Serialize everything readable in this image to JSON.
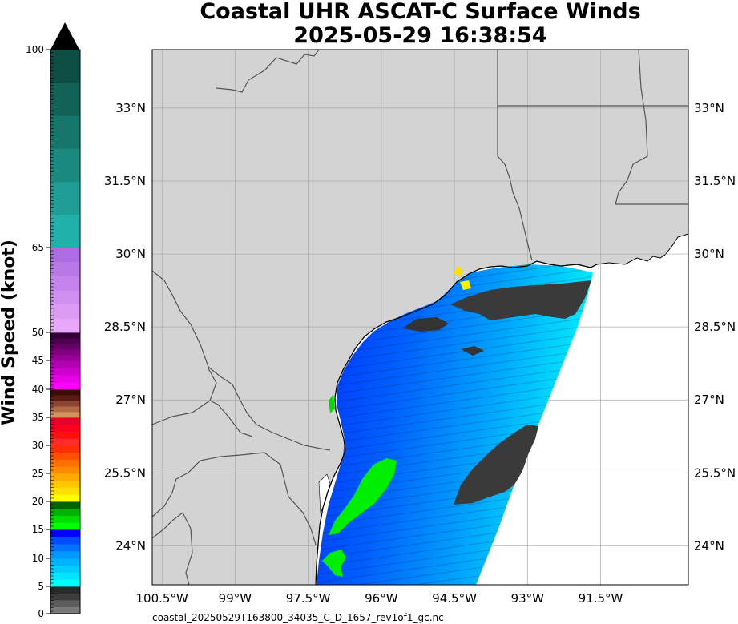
{
  "header": {
    "title_line1": "Coastal UHR ASCAT-C Surface Winds",
    "title_line2": "2025-05-29 16:38:54"
  },
  "colorbar": {
    "label": "Wind Speed (knot)",
    "ticks": [
      "0",
      "5",
      "10",
      "15",
      "20",
      "25",
      "30",
      "35",
      "40",
      "45",
      "50",
      "65",
      "100"
    ],
    "tick_values": [
      0,
      5,
      10,
      15,
      20,
      25,
      30,
      35,
      40,
      45,
      50,
      65,
      100
    ],
    "segments": [
      {
        "from": 0,
        "to": 5,
        "colors": [
          "#7a7a7a",
          "#5c5c5c",
          "#3c3c3c",
          "#2a2a2a"
        ]
      },
      {
        "from": 5,
        "to": 10,
        "colors": [
          "#00ffff",
          "#00e6ff",
          "#00ccff",
          "#00b3ff"
        ]
      },
      {
        "from": 10,
        "to": 15,
        "colors": [
          "#0099ff",
          "#0073ff",
          "#004dff",
          "#0000ff"
        ]
      },
      {
        "from": 15,
        "to": 20,
        "colors": [
          "#00ff00",
          "#00dd00",
          "#00b300",
          "#006400"
        ]
      },
      {
        "from": 20,
        "to": 25,
        "colors": [
          "#ffff00",
          "#ffe000",
          "#ffc800",
          "#ffaa00"
        ]
      },
      {
        "from": 25,
        "to": 30,
        "colors": [
          "#ff8c00",
          "#ff7000",
          "#ff5000",
          "#ff3000"
        ]
      },
      {
        "from": 30,
        "to": 35,
        "colors": [
          "#ff2a2a",
          "#ff1010",
          "#ff0020",
          "#e8002a"
        ]
      },
      {
        "from": 35,
        "to": 40,
        "colors": [
          "#d2945a",
          "#b06a46",
          "#8c4432",
          "#5a1c12",
          "#3c0c08"
        ]
      },
      {
        "from": 40,
        "to": 45,
        "colors": [
          "#ff00ff",
          "#e600e6",
          "#cc00cc",
          "#b300b3"
        ]
      },
      {
        "from": 45,
        "to": 50,
        "colors": [
          "#990099",
          "#800080",
          "#660066",
          "#4d004d",
          "#330033"
        ]
      },
      {
        "from": 50,
        "to": 65,
        "colors": [
          "#e8a8f8",
          "#dc9cf4",
          "#d090f0",
          "#c484ec",
          "#b878e8",
          "#ac6ce4"
        ]
      },
      {
        "from": 65,
        "to": 100,
        "colors": [
          "#20b2aa",
          "#1e9e94",
          "#1a8a80",
          "#16766c",
          "#126258",
          "#0e4e44"
        ]
      }
    ]
  },
  "map": {
    "lat_labels": [
      "33°N",
      "31.5°N",
      "30°N",
      "28.5°N",
      "27°N",
      "25.5°N",
      "24°N"
    ],
    "lat_values": [
      33,
      31.5,
      30,
      28.5,
      27,
      25.5,
      24
    ],
    "lon_labels": [
      "100.5°W",
      "99°W",
      "97.5°W",
      "96°W",
      "94.5°W",
      "93°W",
      "91.5°W"
    ],
    "lon_values": [
      -100.5,
      -99,
      -97.5,
      -96,
      -94.5,
      -93,
      -91.5
    ],
    "lat_range": [
      23.2,
      34.2
    ],
    "lon_range": [
      -100.7,
      -89.7
    ],
    "land_color": "#d3d3d3",
    "ocean_color": "#ffffff",
    "gridline_color": "#a9a9a9"
  },
  "footer": {
    "filename": "coastal_20250529T163800_34035_C_D_1657_rev1of1_gc.nc"
  }
}
